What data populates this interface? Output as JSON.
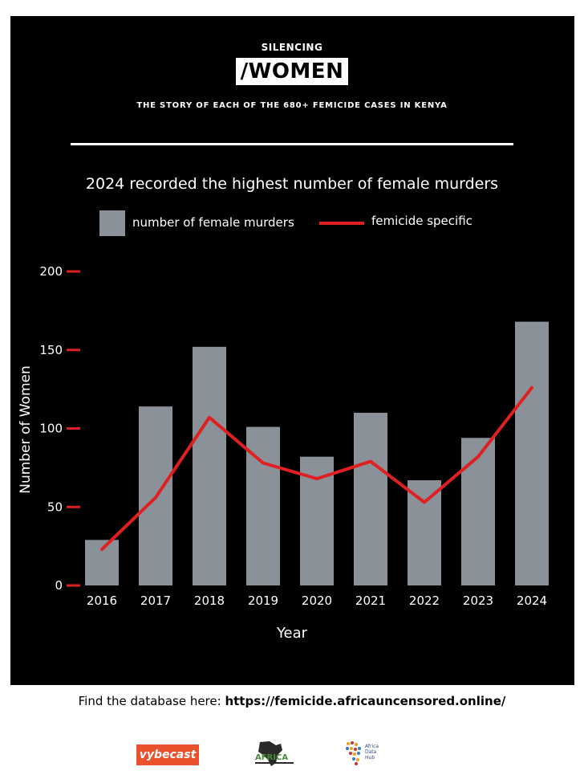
{
  "header": {
    "kicker": "SILENCING",
    "brand": "/WOMEN",
    "tagline": "THE STORY OF EACH OF THE 680+ FEMICIDE CASES IN KENYA"
  },
  "chart_data": {
    "type": "bar",
    "title": "2024 recorded the highest number of female murders",
    "xlabel": "Year",
    "ylabel": "Number of Women",
    "ylim": [
      0,
      200
    ],
    "yticks": [
      "0",
      "50",
      "100",
      "150",
      "200"
    ],
    "categories": [
      "2016",
      "2017",
      "2018",
      "2019",
      "2020",
      "2021",
      "2022",
      "2023",
      "2024"
    ],
    "series": [
      {
        "name": "number of female murders",
        "type": "bar",
        "color": "#8a9199",
        "values": [
          29,
          114,
          152,
          101,
          82,
          110,
          67,
          94,
          168
        ]
      },
      {
        "name": "femicide specific",
        "type": "line",
        "color": "#e02020",
        "values": [
          23,
          56,
          107,
          78,
          68,
          79,
          53,
          82,
          126
        ]
      }
    ],
    "legend_position": "top",
    "grid": false
  },
  "footer": {
    "prefix": "Find the database here: ",
    "url": "https://femicide.africauncensored.online/"
  },
  "logos": {
    "vybecast": "vybecast",
    "africa_uncensored": "AFRICA",
    "africa_data_hub": "Africa Data Hub"
  }
}
